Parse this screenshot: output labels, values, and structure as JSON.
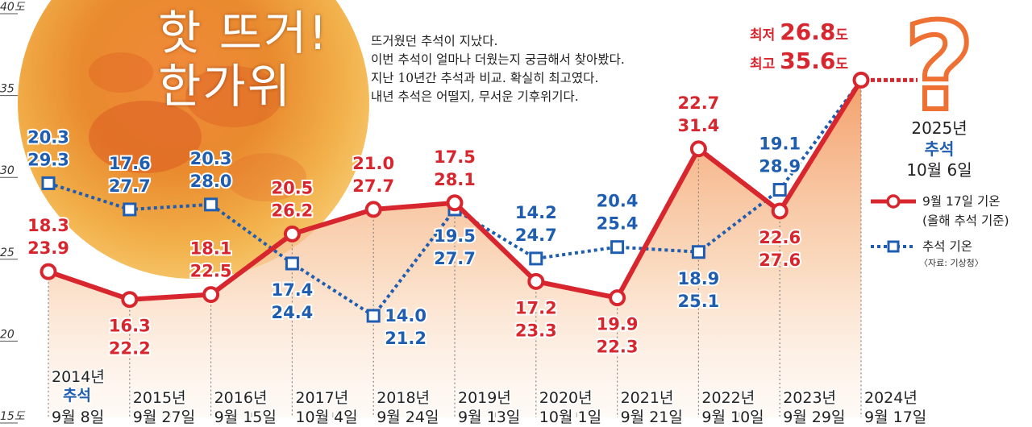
{
  "headline": [
    "핫 뜨거!",
    "한가위"
  ],
  "intro_lines": [
    "뜨거웠던 추석이 지났다.",
    "이번 추석이 얼마나 더웠는지 궁금해서 찾아봤다.",
    "지난 10년간 추석과 비교. 확실히 최고였다.",
    "내년 추석은 어떨지, 무서운 기후위기다."
  ],
  "current": {
    "min_label": "최저",
    "min_value": "26.8",
    "max_label": "최고",
    "max_value": "35.6",
    "unit": "도"
  },
  "next_chuseok": {
    "year": "2025년",
    "name": "추석",
    "date": "10월 6일",
    "mark": "?"
  },
  "legend": [
    {
      "label": "9월 17일 기온",
      "sub": "(올해 추석 기준)"
    },
    {
      "label": "추석 기온",
      "sub": ""
    }
  ],
  "source": "〈자료: 기상청〉",
  "colors": {
    "red": "#d8262e",
    "blue": "#1f5db0",
    "moon": "#f3a53a",
    "fill": "#f5a678"
  },
  "chart_data": {
    "type": "line",
    "y_unit": "도",
    "y_ticks": [
      "15",
      "20",
      "25",
      "30",
      "35",
      "40"
    ],
    "ylim": [
      15,
      40
    ],
    "categories": [
      {
        "year": "2014년",
        "chuseok": "추석",
        "date": "9월 8일"
      },
      {
        "year": "2015년",
        "chuseok": "",
        "date": "9월 27일"
      },
      {
        "year": "2016년",
        "chuseok": "",
        "date": "9월 15일"
      },
      {
        "year": "2017년",
        "chuseok": "",
        "date": "10월 4일"
      },
      {
        "year": "2018년",
        "chuseok": "",
        "date": "9월 24일"
      },
      {
        "year": "2019년",
        "chuseok": "",
        "date": "9월 13일"
      },
      {
        "year": "2020년",
        "chuseok": "",
        "date": "10월 1일"
      },
      {
        "year": "2021년",
        "chuseok": "",
        "date": "9월 21일"
      },
      {
        "year": "2022년",
        "chuseok": "",
        "date": "9월 10일"
      },
      {
        "year": "2023년",
        "chuseok": "",
        "date": "9월 29일"
      },
      {
        "year": "2024년",
        "chuseok": "",
        "date": "9월 17일"
      }
    ],
    "series": [
      {
        "name": "9월 17일 기온",
        "values_max": [
          23.9,
          22.2,
          22.5,
          26.2,
          27.7,
          28.1,
          23.3,
          22.3,
          31.4,
          27.6,
          35.6
        ],
        "values_min": [
          18.3,
          16.3,
          18.1,
          20.5,
          21.0,
          17.5,
          17.2,
          19.9,
          22.7,
          22.6,
          26.8
        ]
      },
      {
        "name": "추석 기온",
        "values_max": [
          29.3,
          27.7,
          28.0,
          24.4,
          21.2,
          27.7,
          24.7,
          25.4,
          25.1,
          28.9,
          35.6
        ],
        "values_min": [
          20.3,
          17.6,
          20.3,
          17.4,
          14.0,
          19.5,
          14.2,
          20.4,
          18.9,
          19.1,
          26.8
        ]
      }
    ]
  }
}
